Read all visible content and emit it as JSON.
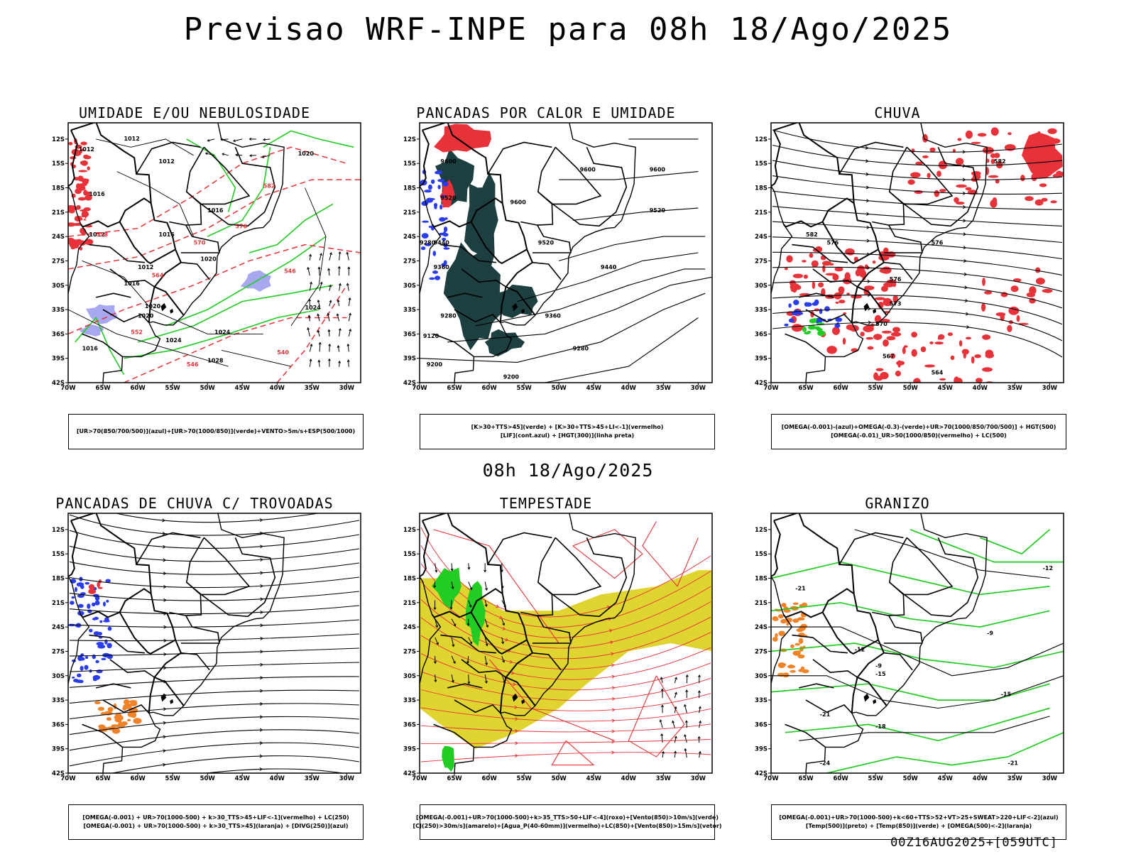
{
  "header": {
    "title": "Previsao WRF-INPE  para 08h 18/Ago/2025"
  },
  "middle": {
    "title": "08h 18/Ago/2025"
  },
  "footer": {
    "run": "00Z16AUG2025+[059UTC]"
  },
  "colors": {
    "red": "#e8323a",
    "green": "#22cc22",
    "blue": "#2a3cf0",
    "lavender": "#a8a8f0",
    "dark_teal": "#1e3f3f",
    "yellow": "#e0d430",
    "orange": "#f08228",
    "black": "#000000"
  },
  "chart_data": [
    {
      "type": "map",
      "title": "UMIDADE E/OU NEBULOSIDADE",
      "x_ticks": [
        "70W",
        "65W",
        "60W",
        "55W",
        "50W",
        "45W",
        "40W",
        "35W",
        "30W"
      ],
      "y_ticks": [
        "12S",
        "15S",
        "18S",
        "21S",
        "24S",
        "27S",
        "30S",
        "33S",
        "36S",
        "39S",
        "42S"
      ],
      "xlim": [
        -70,
        -28
      ],
      "ylim": [
        -42,
        -10
      ],
      "contour_labels": [
        "1012",
        "1012",
        "1012",
        "1016",
        "1012",
        "1016",
        "1016",
        "1016",
        "1020",
        "1020",
        "1020",
        "1024",
        "1024",
        "1028",
        "1016",
        "1012",
        "1020",
        "1024"
      ],
      "thickness_labels": [
        "552",
        "558",
        "564",
        "570",
        "576",
        "582",
        "546",
        "540",
        "546",
        "552"
      ],
      "legend": [
        "[UR>70(850/700/500)](azul)+[UR>70(1000/850)](verde)+VENTO>5m/s+ESP(500/1000)"
      ]
    },
    {
      "type": "map",
      "title": "PANCADAS POR CALOR E UMIDADE",
      "x_ticks": [
        "70W",
        "65W",
        "60W",
        "55W",
        "50W",
        "45W",
        "40W",
        "35W",
        "30W"
      ],
      "y_ticks": [
        "12S",
        "15S",
        "18S",
        "21S",
        "24S",
        "27S",
        "30S",
        "33S",
        "36S",
        "39S",
        "42S"
      ],
      "xlim": [
        -70,
        -28
      ],
      "ylim": [
        -42,
        -10
      ],
      "contour_labels": [
        "9600",
        "9600",
        "9600",
        "9600",
        "9520",
        "9520",
        "9520",
        "9440",
        "9440",
        "9360",
        "9360",
        "9280",
        "9280",
        "9200",
        "9200",
        "9120",
        "9280"
      ],
      "legend": [
        "[K>30+TTS>45](verde) + [K>30+TTS>45+LI<-1](vermelho)",
        "[LIF](cont.azul) + [HGT(300)](linha preta)"
      ]
    },
    {
      "type": "map",
      "title": "CHUVA",
      "x_ticks": [
        "70W",
        "65W",
        "60W",
        "55W",
        "50W",
        "45W",
        "40W",
        "35W",
        "30W"
      ],
      "y_ticks": [
        "12S",
        "15S",
        "18S",
        "21S",
        "24S",
        "27S",
        "30S",
        "33S",
        "36S",
        "39S",
        "42S"
      ],
      "xlim": [
        -70,
        -28
      ],
      "ylim": [
        -42,
        -10
      ],
      "contour_labels": [
        "582",
        "582",
        "576",
        "576",
        "573",
        "570",
        "567",
        "564",
        "576"
      ],
      "legend": [
        "[OMEGA(-0.001)-(azul)+OMEGA(-0.3)-(verde)+UR>70(1000/850/700/500)] + HGT(500)",
        "[OMEGA(-0.01)_UR>50(1000/850)(vermelho) + LC(500)"
      ]
    },
    {
      "type": "map",
      "title": "PANCADAS DE CHUVA C/ TROVOADAS",
      "x_ticks": [
        "70W",
        "65W",
        "60W",
        "55W",
        "50W",
        "45W",
        "40W",
        "35W",
        "30W"
      ],
      "y_ticks": [
        "12S",
        "15S",
        "18S",
        "21S",
        "24S",
        "27S",
        "30S",
        "33S",
        "36S",
        "39S",
        "42S"
      ],
      "xlim": [
        -70,
        -28
      ],
      "ylim": [
        -42,
        -10
      ],
      "legend": [
        "[OMEGA(-0.001) + UR>70(1000-500) + k>30_TTS>45+LIF<-1](vermelho) + LC(250)",
        "[OMEGA(-0.001) + UR>70(1000-500) + k>30_TTS>45](laranja) + [DIVG(250)](azul)"
      ]
    },
    {
      "type": "map",
      "title": "TEMPESTADE",
      "x_ticks": [
        "70W",
        "65W",
        "60W",
        "55W",
        "50W",
        "45W",
        "40W",
        "35W",
        "30W"
      ],
      "y_ticks": [
        "12S",
        "15S",
        "18S",
        "21S",
        "24S",
        "27S",
        "30S",
        "33S",
        "36S",
        "39S",
        "42S"
      ],
      "xlim": [
        -70,
        -28
      ],
      "ylim": [
        -42,
        -10
      ],
      "legend": [
        "[OMEGA(-0.001)+UR>70(1000-500)+k>35_TTS>50+LIF<-4](roxo)+[Vento(850)>10m/s](verde)",
        "[CJ(250)>30m/s](amarelo)+[Agua_P(40-60mm)](vermelho)+LC(850)+[Vento(850)>15m/s](vetor)"
      ]
    },
    {
      "type": "map",
      "title": "GRANIZO",
      "x_ticks": [
        "70W",
        "65W",
        "60W",
        "55W",
        "50W",
        "45W",
        "40W",
        "35W",
        "30W"
      ],
      "y_ticks": [
        "12S",
        "15S",
        "18S",
        "21S",
        "24S",
        "27S",
        "30S",
        "33S",
        "36S",
        "39S",
        "42S"
      ],
      "xlim": [
        -70,
        -28
      ],
      "ylim": [
        -42,
        -10
      ],
      "contour_labels": [
        "-12",
        "-12",
        "-9",
        "-9",
        "-15",
        "-15",
        "-18",
        "-21",
        "-21",
        "-24",
        "-21"
      ],
      "legend": [
        "[OMEGA(-0.001)+UR>70(1000-500)+k<60+TTS>52+VT>25+SWEAT>220+LIF<-2](azul)",
        "[Temp(500)](preto) + [Temp(850)](verde) + [OMEGA(500)<-2](laranja)"
      ]
    }
  ]
}
